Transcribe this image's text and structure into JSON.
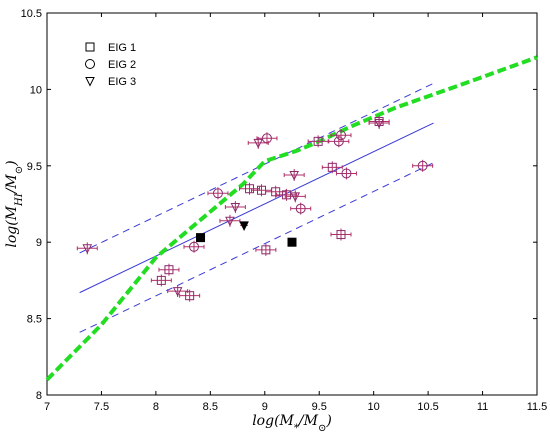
{
  "chart_data": {
    "type": "scatter",
    "xlabel": "log(M*/M⊙)",
    "ylabel": "log(MHI/M⊙)",
    "xlim": [
      7,
      11.5
    ],
    "ylim": [
      8,
      10.5
    ],
    "xticks": [
      "7",
      "7.5",
      "8",
      "8.5",
      "9",
      "9.5",
      "10",
      "10.5",
      "11",
      "11.5"
    ],
    "yticks": [
      "8",
      "8.5",
      "9",
      "9.5",
      "10",
      "10.5"
    ],
    "legend_position": "top-left",
    "colors": {
      "marker": "#8b2a6a",
      "errorbar": "#b0306a",
      "fit": "#3a3ad6",
      "model": "#22dd22",
      "filled": "#000000"
    },
    "series": [
      {
        "name": "EIG 1",
        "marker": "square",
        "points": [
          [
            8.05,
            8.75
          ],
          [
            8.12,
            8.82
          ],
          [
            8.31,
            8.65
          ],
          [
            8.86,
            9.35
          ],
          [
            8.97,
            9.34
          ],
          [
            9.1,
            9.33
          ],
          [
            9.2,
            9.31
          ],
          [
            9.01,
            8.95
          ],
          [
            9.49,
            9.66
          ],
          [
            9.62,
            9.49
          ],
          [
            9.7,
            9.05
          ],
          [
            10.05,
            9.79
          ]
        ]
      },
      {
        "name": "EIG 2",
        "marker": "circle",
        "points": [
          [
            8.35,
            8.97
          ],
          [
            8.57,
            9.32
          ],
          [
            9.02,
            9.68
          ],
          [
            9.33,
            9.22
          ],
          [
            9.68,
            9.66
          ],
          [
            9.7,
            9.7
          ],
          [
            9.75,
            9.45
          ],
          [
            10.45,
            9.5
          ]
        ]
      },
      {
        "name": "EIG 3",
        "marker": "triangle",
        "points": [
          [
            7.37,
            8.96
          ],
          [
            8.2,
            8.68
          ],
          [
            8.68,
            9.14
          ],
          [
            8.73,
            9.23
          ],
          [
            8.94,
            9.65
          ],
          [
            9.27,
            9.44
          ],
          [
            9.28,
            9.3
          ],
          [
            10.05,
            9.78
          ]
        ]
      }
    ],
    "filled_points": [
      {
        "marker": "square",
        "x": 8.41,
        "y": 9.03
      },
      {
        "marker": "square",
        "x": 9.25,
        "y": 9.0
      },
      {
        "marker": "triangle",
        "x": 8.81,
        "y": 9.11
      }
    ],
    "fit_line": {
      "x": [
        7.3,
        10.55
      ],
      "y": [
        8.67,
        9.78
      ]
    },
    "fit_upper": {
      "x": [
        7.3,
        10.55
      ],
      "y": [
        8.93,
        10.04
      ]
    },
    "fit_lower": {
      "x": [
        7.3,
        10.55
      ],
      "y": [
        8.41,
        9.52
      ]
    },
    "model_curve": {
      "x": [
        7.0,
        7.5,
        8.0,
        8.5,
        8.8,
        9.0,
        9.3,
        9.5,
        9.8,
        10.2,
        10.8,
        11.5
      ],
      "y": [
        8.1,
        8.46,
        8.9,
        9.2,
        9.38,
        9.53,
        9.6,
        9.66,
        9.76,
        9.88,
        10.03,
        10.21
      ]
    }
  }
}
